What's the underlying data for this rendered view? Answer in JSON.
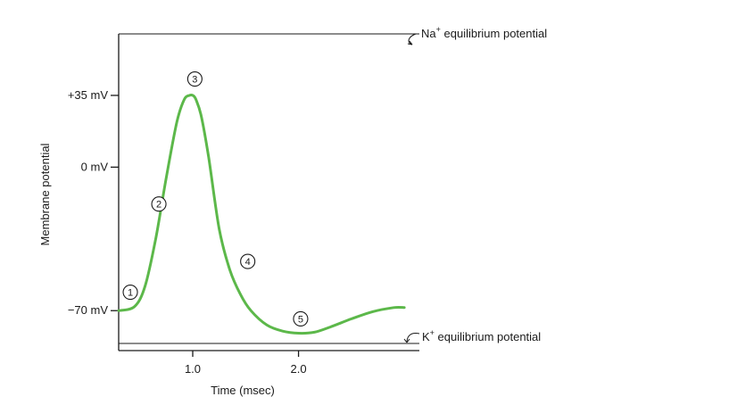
{
  "chart_data": {
    "type": "line",
    "xlabel": "Time (msec)",
    "ylabel": "Membrane potential",
    "x_ticks": [
      {
        "value": 1.0,
        "label": "1.0"
      },
      {
        "value": 2.0,
        "label": "2.0"
      }
    ],
    "y_ticks": [
      {
        "value": 35,
        "label": "+35 mV"
      },
      {
        "value": 0,
        "label": "0 mV"
      },
      {
        "value": -70,
        "label": "−70 mV"
      }
    ],
    "xlim": [
      0.3,
      3.1
    ],
    "ylim": [
      -86,
      65
    ],
    "na_level": 65,
    "k_level": -86,
    "na_label": {
      "ion": "Na",
      "charge": "+",
      "text": " equilibrium potential"
    },
    "k_label": {
      "ion": "K",
      "charge": "+",
      "text": " equilibrium potential"
    },
    "line_color": "#5cb84a",
    "series": [
      {
        "x": [
          0.3,
          0.45,
          0.55,
          0.65,
          0.75,
          0.85,
          0.92,
          0.97,
          1.0,
          1.03,
          1.08,
          1.15,
          1.25,
          1.35,
          1.45,
          1.55,
          1.7,
          1.85,
          2.0,
          2.15,
          2.3,
          2.5,
          2.7,
          2.9,
          3.0
        ],
        "y": [
          -70,
          -68,
          -58,
          -35,
          -5,
          22,
          33,
          35,
          35,
          33,
          25,
          5,
          -30,
          -50,
          -62,
          -70,
          -77,
          -80,
          -81,
          -80.5,
          -78,
          -74,
          -70.5,
          -68.5,
          -68.5
        ]
      }
    ],
    "markers": [
      {
        "label": "1",
        "x": 0.41,
        "y": -61
      },
      {
        "label": "2",
        "x": 0.68,
        "y": -18
      },
      {
        "label": "3",
        "x": 1.02,
        "y": 43
      },
      {
        "label": "4",
        "x": 1.52,
        "y": -46
      },
      {
        "label": "5",
        "x": 2.02,
        "y": -74
      }
    ]
  }
}
